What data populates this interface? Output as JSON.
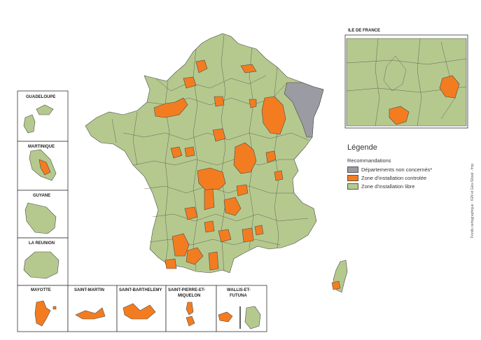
{
  "colors": {
    "libre": "#b5c98e",
    "controlee": "#f47c20",
    "non_concerne": "#9b9ba3",
    "border": "#4a4a4a"
  },
  "legend": {
    "title": "Légende",
    "subtitle": "Recommandations",
    "items": [
      {
        "label": "Départements non concernés*",
        "color_key": "non_concerne"
      },
      {
        "label": "Zone d'installation controlée",
        "color_key": "controlee"
      },
      {
        "label": "Zone d'installation libre",
        "color_key": "libre"
      }
    ]
  },
  "insets": {
    "ile_de_france": "ILE DE FRANCE",
    "guadeloupe": "GUADELOUPE",
    "martinique": "MARTINIQUE",
    "guyane": "GUYANE",
    "reunion": "LA REUNION",
    "mayotte": "MAYOTTE",
    "saint_martin": "SAINT-MARTIN",
    "saint_barthelemy": "SAINT-BARTHELEMY",
    "spm_line1": "SAINT-PIERRE-ET-",
    "spm_line2": "MIQUELON",
    "wf_line1": "WALLIS-ET-",
    "wf_line2": "FUTUNA"
  },
  "credit": "Fonds cartographique : IGN et Géo-Sibsol - fmp"
}
